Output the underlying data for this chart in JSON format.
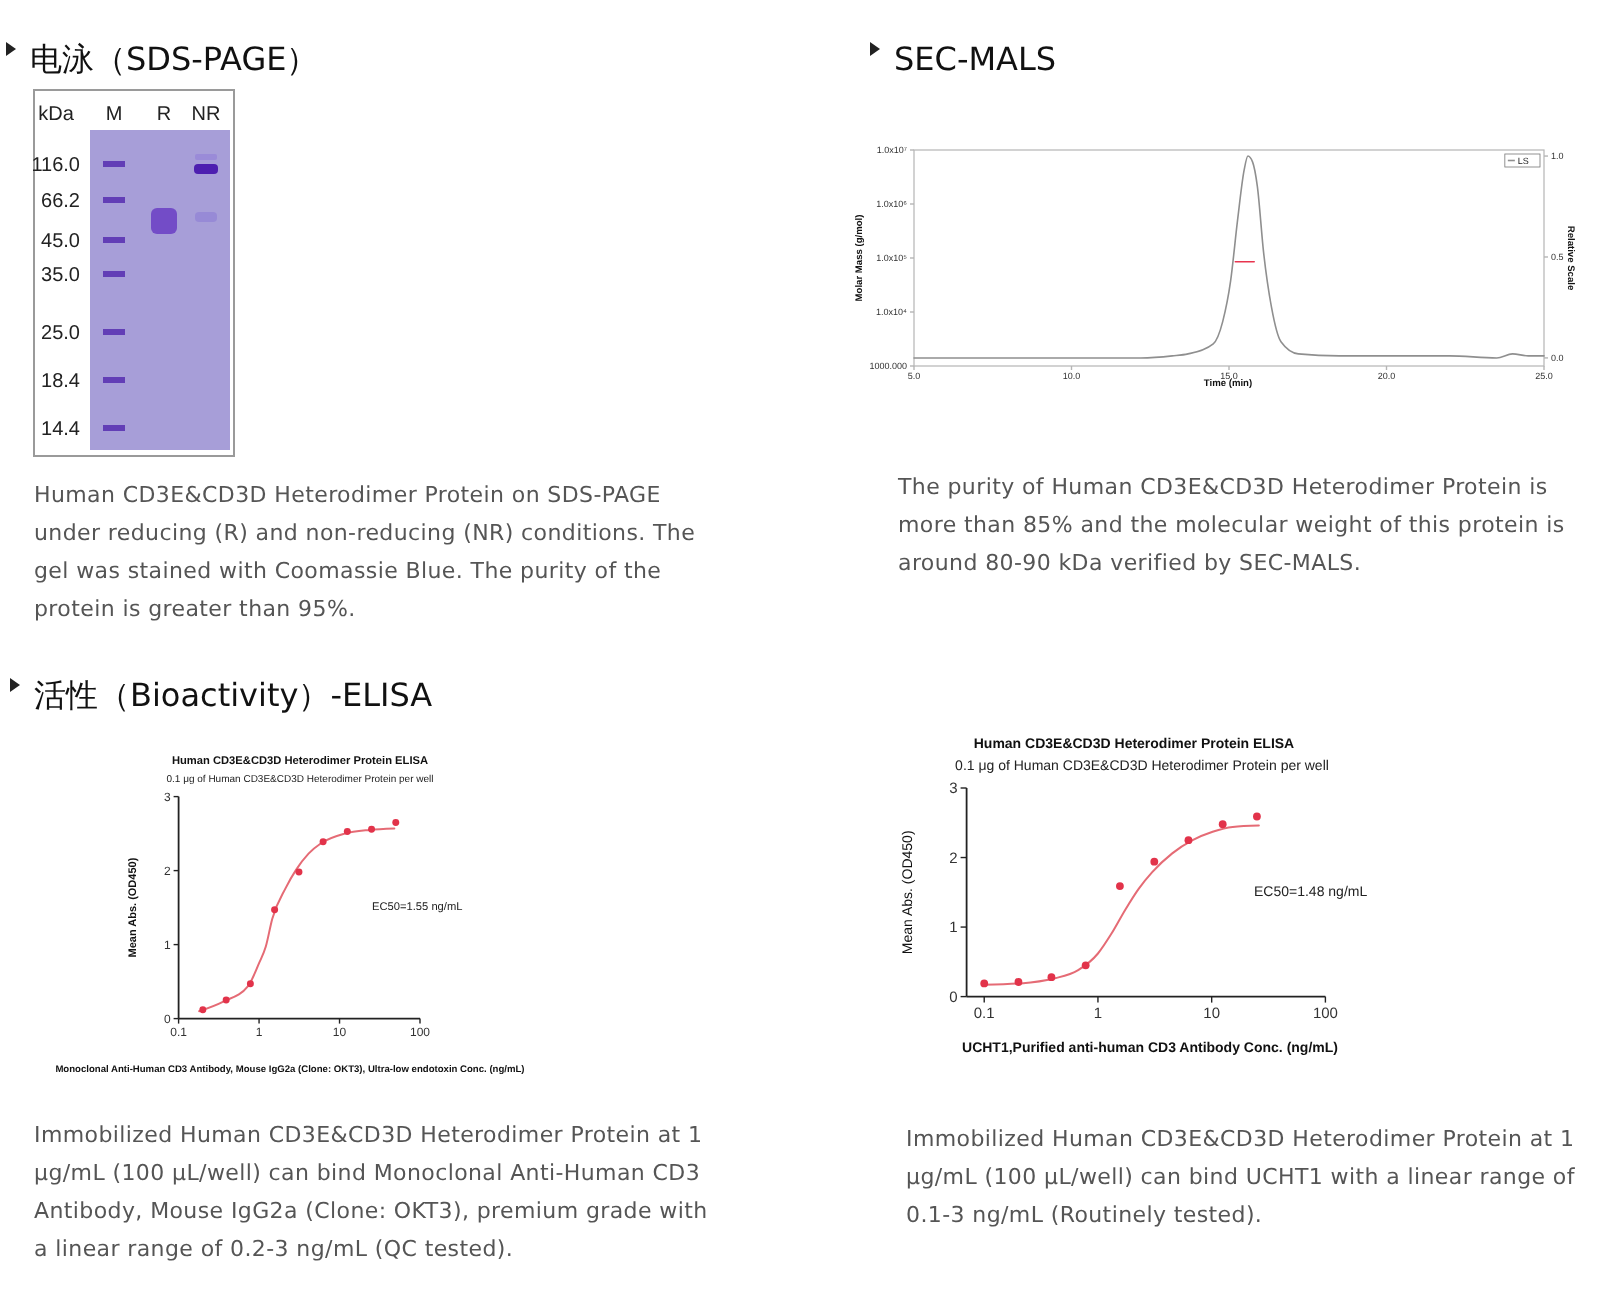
{
  "chart_data": [
    {
      "type": "other",
      "title": "电泳（SDS-PAGE）",
      "ylabel": "kDa",
      "categories": [
        "M",
        "R",
        "NR"
      ],
      "y_categories": [
        "116.0",
        "66.2",
        "45.0",
        "35.0",
        "25.0",
        "18.4",
        "14.4"
      ],
      "annotations": [
        "Human CD3E&CD3D Heterodimer Protein on SDS-PAGE under reducing (R) and non-reducing (NR) conditions. The gel was stained with Coomassie Blue. The purity of the protein is greater than 95%."
      ]
    },
    {
      "type": "line",
      "title": "SEC-MALS",
      "xlabel": "Time (min)",
      "ylabel": "Molar Mass (g/mol)",
      "y2label": "Relative Scale",
      "log": "y",
      "xlim": [
        5,
        25
      ],
      "xticks": [
        {
          "value": 5,
          "label": "5.0"
        },
        {
          "value": 10,
          "label": "10.0"
        },
        {
          "value": 15,
          "label": "15.0"
        },
        {
          "value": 20,
          "label": "20.0"
        },
        {
          "value": 25,
          "label": "25.0"
        }
      ],
      "ylim": [
        1000,
        10000000
      ],
      "yticks": [
        {
          "value": 1000,
          "label": "1000.000"
        },
        {
          "value": 10000,
          "label": "1.0x10⁴"
        },
        {
          "value": 100000,
          "label": "1.0x10⁵"
        },
        {
          "value": 1000000,
          "label": "1.0x10⁶"
        },
        {
          "value": 10000000,
          "label": "1.0x10⁷"
        }
      ],
      "y2lim": [
        -0.04,
        1.03
      ],
      "y2ticks": [
        {
          "value": 0,
          "label": "0.0"
        },
        {
          "value": 0.5,
          "label": "0.5"
        },
        {
          "value": 1,
          "label": "1.0"
        }
      ],
      "legend": "top right",
      "series": [
        {
          "name": "LS",
          "color": "#8f8f8f",
          "axis": "y2",
          "x": [
            5,
            8,
            11,
            12.2,
            13.2,
            13.7,
            14.5,
            14.8,
            15.05,
            15.27,
            15.48,
            15.6,
            15.75,
            15.9,
            16.1,
            16.35,
            16.65,
            17.2,
            18.5,
            20,
            22,
            23.5,
            24,
            24.5,
            25
          ],
          "values": [
            0,
            0,
            0,
            0,
            0.01,
            0.02,
            0.07,
            0.18,
            0.38,
            0.68,
            0.93,
            1,
            0.97,
            0.85,
            0.52,
            0.25,
            0.08,
            0.02,
            0.01,
            0.01,
            0.01,
            0,
            0.02,
            0.01,
            0.01
          ]
        },
        {
          "color": "#e8344e",
          "x": [
            15.2,
            15.4,
            15.6,
            15.8
          ],
          "values": [
            85000,
            85000,
            85000,
            85000
          ]
        }
      ],
      "annotations": [
        "The purity of Human CD3E&CD3D Heterodimer Protein is more than 85% and the molecular weight of this protein is around 80-90 kDa verified by SEC-MALS."
      ]
    },
    {
      "type": "other",
      "title": "活性（Bioactivity）-ELISA"
    },
    {
      "type": "scatter",
      "title": "Human CD3E&CD3D Heterodimer Protein ELISA",
      "subtitle": "0.1 μg of Human CD3E&CD3D Heterodimer Protein per well",
      "xlabel": "Monoclonal Anti-Human CD3 Antibody, Mouse IgG2a (Clone: OKT3), Ultra-low endotoxin Conc. (ng/mL)",
      "ylabel": "Mean Abs. (OD450)",
      "log": "x",
      "xlim": [
        0.1,
        100
      ],
      "xticks": [
        0.1,
        1,
        10,
        100
      ],
      "ylim": [
        0,
        3
      ],
      "yticks": [
        0,
        1,
        2,
        3
      ],
      "series": [
        {
          "type": "scatter",
          "marker": "circle",
          "color": "#e2334a",
          "x": [
            0.2,
            0.39,
            0.78,
            1.56,
            3.13,
            6.25,
            12.5,
            25,
            50
          ],
          "values": [
            0.12,
            0.25,
            0.47,
            1.47,
            1.98,
            2.39,
            2.53,
            2.56,
            2.65
          ]
        },
        {
          "type": "line",
          "color": "#e56b75",
          "x": [
            0.18,
            0.36,
            0.73,
            1,
            1.21,
            1.46,
            2.13,
            2.88,
            4.12,
            5.89,
            11.6,
            23.4,
            48
          ],
          "values": [
            0.1,
            0.23,
            0.44,
            0.75,
            0.97,
            1.35,
            1.76,
            2.01,
            2.23,
            2.37,
            2.5,
            2.55,
            2.57
          ]
        }
      ],
      "annotations": [
        "EC50=1.55 ng/mL",
        "Immobilized Human CD3E&CD3D Heterodimer Protein at 1 μg/mL (100 μL/well) can bind Monoclonal Anti-Human CD3 Antibody, Mouse IgG2a (Clone: OKT3), premium grade with a linear range of 0.2-3 ng/mL (QC tested)."
      ]
    },
    {
      "type": "scatter",
      "title": "Human CD3E&CD3D Heterodimer Protein ELISA",
      "subtitle": "0.1 μg of Human CD3E&CD3D Heterodimer Protein per well",
      "xlabel": "UCHT1,Purified anti-human CD3 Antibody Conc. (ng/mL)",
      "ylabel": "Mean Abs. (OD450)",
      "log": "x",
      "xlim": [
        0.07,
        100
      ],
      "xticks": [
        0.1,
        1,
        10,
        100
      ],
      "ylim": [
        0,
        3
      ],
      "yticks": [
        0,
        1,
        2,
        3
      ],
      "series": [
        {
          "type": "scatter",
          "marker": "circle",
          "color": "#e2334a",
          "x": [
            0.1,
            0.2,
            0.39,
            0.78,
            1.56,
            3.13,
            6.25,
            12.5,
            25
          ],
          "values": [
            0.19,
            0.21,
            0.28,
            0.45,
            1.59,
            1.94,
            2.25,
            2.48,
            2.59
          ]
        },
        {
          "type": "line",
          "color": "#e56b75",
          "x": [
            0.1,
            0.21,
            0.41,
            0.67,
            1,
            1.32,
            1.74,
            2.28,
            3,
            4.5,
            6.8,
            10.2,
            15.3,
            26
          ],
          "values": [
            0.17,
            0.19,
            0.26,
            0.38,
            0.62,
            0.91,
            1.25,
            1.55,
            1.79,
            2.06,
            2.25,
            2.37,
            2.44,
            2.46
          ]
        }
      ],
      "annotations": [
        "EC50=1.48 ng/mL",
        "Immobilized Human CD3E&CD3D Heterodimer Protein at 1 μg/mL (100 μL/well) can bind UCHT1 with a linear range of 0.1-3 ng/mL (Routinely tested)."
      ]
    }
  ]
}
